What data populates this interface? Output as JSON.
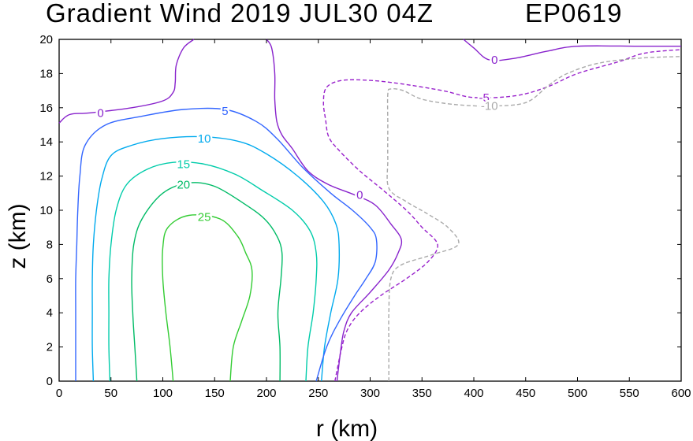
{
  "chart_data": {
    "type": "contour",
    "title": "Gradient Wind 2019 JUL30 04Z",
    "storm_id": "EP0619",
    "xlabel": "r (km)",
    "ylabel": "z (km)",
    "xlim": [
      0,
      600
    ],
    "ylim": [
      0,
      20
    ],
    "xticks": [
      0,
      50,
      100,
      150,
      200,
      250,
      300,
      350,
      400,
      450,
      500,
      550,
      600
    ],
    "yticks": [
      0,
      2,
      4,
      6,
      8,
      10,
      12,
      14,
      16,
      18,
      20
    ],
    "contours": [
      {
        "level": 25,
        "label": "25",
        "color": "#33cc33",
        "dashed": false,
        "label_at": [
          140,
          9.6
        ],
        "points": [
          [
            110,
            0
          ],
          [
            107,
            2
          ],
          [
            103,
            4
          ],
          [
            100,
            6
          ],
          [
            100,
            7.8
          ],
          [
            105,
            9
          ],
          [
            125,
            9.7
          ],
          [
            155,
            9.5
          ],
          [
            172,
            8.5
          ],
          [
            180,
            7.5
          ],
          [
            186,
            6.5
          ],
          [
            184,
            5
          ],
          [
            176,
            3.5
          ],
          [
            168,
            2
          ],
          [
            165,
            0
          ]
        ]
      },
      {
        "level": 20,
        "label": "20",
        "color": "#00bb66",
        "dashed": false,
        "label_at": [
          120,
          11.5
        ],
        "points": [
          [
            75,
            0
          ],
          [
            73,
            2
          ],
          [
            71,
            4
          ],
          [
            70,
            6
          ],
          [
            72,
            8
          ],
          [
            80,
            9.5
          ],
          [
            100,
            11
          ],
          [
            125,
            11.6
          ],
          [
            150,
            11.4
          ],
          [
            178,
            10.4
          ],
          [
            198,
            9.5
          ],
          [
            210,
            8.5
          ],
          [
            215,
            7.5
          ],
          [
            214,
            6
          ],
          [
            211,
            4
          ],
          [
            213,
            2
          ],
          [
            213,
            0
          ]
        ]
      },
      {
        "level": 15,
        "label": "15",
        "color": "#00ccaa",
        "dashed": false,
        "label_at": [
          120,
          12.7
        ],
        "points": [
          [
            49,
            0
          ],
          [
            48,
            2
          ],
          [
            48,
            4
          ],
          [
            48,
            6
          ],
          [
            50,
            8
          ],
          [
            55,
            10
          ],
          [
            65,
            11.5
          ],
          [
            85,
            12.4
          ],
          [
            110,
            12.8
          ],
          [
            140,
            12.7
          ],
          [
            170,
            12.1
          ],
          [
            195,
            11.2
          ],
          [
            225,
            10
          ],
          [
            242,
            8.8
          ],
          [
            248,
            7.5
          ],
          [
            248,
            6
          ],
          [
            245,
            4
          ],
          [
            240,
            2
          ],
          [
            238,
            0
          ]
        ]
      },
      {
        "level": 10,
        "label": "10",
        "color": "#00aaee",
        "dashed": false,
        "label_at": [
          140,
          14.2
        ],
        "points": [
          [
            33,
            0
          ],
          [
            32,
            2
          ],
          [
            32,
            4
          ],
          [
            32,
            6
          ],
          [
            33,
            8
          ],
          [
            36,
            10
          ],
          [
            41,
            11.8
          ],
          [
            50,
            13.2
          ],
          [
            70,
            13.8
          ],
          [
            100,
            14.2
          ],
          [
            140,
            14.3
          ],
          [
            175,
            14
          ],
          [
            200,
            13.3
          ],
          [
            230,
            12
          ],
          [
            255,
            10.5
          ],
          [
            267,
            9.2
          ],
          [
            270,
            8
          ],
          [
            269,
            6
          ],
          [
            262,
            4
          ],
          [
            256,
            2
          ],
          [
            253,
            0
          ]
        ]
      },
      {
        "level": 5,
        "label": "5",
        "color": "#3366ff",
        "dashed": false,
        "label_at": [
          160,
          15.8
        ],
        "points": [
          [
            16,
            0
          ],
          [
            16,
            2
          ],
          [
            16,
            4
          ],
          [
            16,
            6
          ],
          [
            17,
            8
          ],
          [
            18,
            10
          ],
          [
            20,
            12
          ],
          [
            25,
            13.8
          ],
          [
            45,
            15
          ],
          [
            80,
            15.5
          ],
          [
            120,
            15.9
          ],
          [
            160,
            15.9
          ],
          [
            190,
            15.2
          ],
          [
            210,
            14.2
          ],
          [
            235,
            12.5
          ],
          [
            262,
            11
          ],
          [
            283,
            10
          ],
          [
            300,
            9
          ],
          [
            306,
            8.3
          ],
          [
            305,
            7
          ],
          [
            296,
            6
          ],
          [
            285,
            5
          ],
          [
            270,
            3.5
          ],
          [
            258,
            2
          ],
          [
            248,
            0
          ]
        ]
      },
      {
        "level": 0,
        "label": "0",
        "color": "#8822cc",
        "dashed": false,
        "label_at": [
          40,
          15.7
        ],
        "points": [
          [
            0,
            15.1
          ],
          [
            10,
            15.6
          ],
          [
            30,
            15.7
          ],
          [
            70,
            16
          ],
          [
            100,
            16.4
          ],
          [
            110,
            16.9
          ],
          [
            112,
            17.5
          ],
          [
            113,
            18.5
          ],
          [
            120,
            19.5
          ],
          [
            130,
            20
          ]
        ]
      },
      {
        "level": 0,
        "label": "0",
        "color": "#8822cc",
        "dashed": false,
        "label_at": [
          290,
          10.9
        ],
        "points": [
          [
            200,
            20
          ],
          [
            205,
            19.5
          ],
          [
            208,
            18
          ],
          [
            208,
            16.5
          ],
          [
            210,
            15.2
          ],
          [
            215,
            14.4
          ],
          [
            225,
            13.6
          ],
          [
            240,
            12.3
          ],
          [
            260,
            11.5
          ],
          [
            285,
            10.9
          ],
          [
            305,
            10.3
          ],
          [
            320,
            9.2
          ],
          [
            330,
            8.3
          ],
          [
            327,
            7.5
          ],
          [
            318,
            6.5
          ],
          [
            300,
            5.2
          ],
          [
            282,
            4
          ],
          [
            275,
            3
          ],
          [
            272,
            2
          ],
          [
            268,
            0
          ]
        ]
      },
      {
        "level": 0,
        "label": "0",
        "color": "#8822cc",
        "dashed": false,
        "label_at": [
          420,
          18.8
        ],
        "points": [
          [
            390,
            20
          ],
          [
            400,
            19.5
          ],
          [
            415,
            18.8
          ],
          [
            440,
            18.9
          ],
          [
            470,
            19.3
          ],
          [
            500,
            19.6
          ],
          [
            560,
            19.6
          ],
          [
            600,
            19.6
          ]
        ]
      },
      {
        "level": -5,
        "label": "-5",
        "color": "#9922cc",
        "dashed": true,
        "label_at": [
          410,
          16.6
        ],
        "points": [
          [
            266,
            0
          ],
          [
            272,
            1.8
          ],
          [
            278,
            3
          ],
          [
            290,
            4
          ],
          [
            310,
            5
          ],
          [
            335,
            6
          ],
          [
            356,
            7
          ],
          [
            365,
            8
          ],
          [
            350,
            9
          ],
          [
            335,
            10
          ],
          [
            310,
            11.3
          ],
          [
            290,
            12.3
          ],
          [
            270,
            13.5
          ],
          [
            260,
            14.3
          ],
          [
            257,
            15.3
          ],
          [
            255,
            16.3
          ],
          [
            258,
            17.2
          ],
          [
            273,
            17.6
          ],
          [
            300,
            17.6
          ],
          [
            330,
            17.4
          ],
          [
            370,
            17
          ],
          [
            400,
            16.6
          ],
          [
            440,
            16.7
          ],
          [
            470,
            17.2
          ],
          [
            500,
            18
          ],
          [
            540,
            18.7
          ],
          [
            565,
            19.2
          ],
          [
            600,
            19.4
          ]
        ]
      },
      {
        "level": -10,
        "label": "-10",
        "color": "#aaaaaa",
        "dashed": true,
        "label_at": [
          415,
          16.1
        ],
        "points": [
          [
            318,
            0
          ],
          [
            318,
            2
          ],
          [
            318,
            4
          ],
          [
            320,
            6
          ],
          [
            330,
            6.8
          ],
          [
            360,
            7.4
          ],
          [
            385,
            8
          ],
          [
            375,
            9
          ],
          [
            355,
            9.8
          ],
          [
            335,
            10.5
          ],
          [
            318,
            11.3
          ],
          [
            317,
            13
          ],
          [
            317,
            15
          ],
          [
            317,
            16.8
          ],
          [
            320,
            17.1
          ],
          [
            332,
            17
          ],
          [
            350,
            16.5
          ],
          [
            380,
            16.2
          ],
          [
            415,
            16.1
          ],
          [
            450,
            16.3
          ],
          [
            472,
            17.3
          ],
          [
            490,
            18
          ],
          [
            520,
            18.6
          ],
          [
            560,
            18.9
          ],
          [
            600,
            19
          ]
        ]
      }
    ]
  }
}
